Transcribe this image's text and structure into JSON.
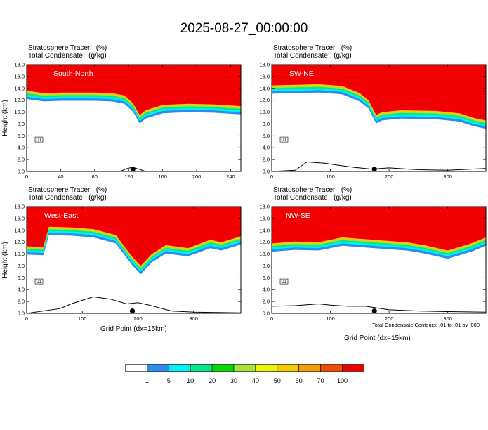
{
  "title": "2025-08-27_00:00:00",
  "panel_header": {
    "line1": "Stratosphere Tracer   (%)",
    "line2": "Total Condensate   (g/kg)"
  },
  "contour_note": "Total Condensate Contours: .01 to .01 by .000",
  "contour_label": "01",
  "colors": [
    "#ffffff",
    "#2c8cf0",
    "#00f2f2",
    "#00e88a",
    "#00dc00",
    "#a0e632",
    "#f0f000",
    "#f8c800",
    "#f89a00",
    "#f44a00",
    "#f00000"
  ],
  "colorbar": {
    "labels": [
      "1",
      "5",
      "10",
      "20",
      "30",
      "40",
      "50",
      "60",
      "70",
      "100"
    ]
  },
  "chart_data": [
    {
      "type": "heatmap",
      "name": "South-North",
      "ylabel": "Height (km)",
      "xlabel": "",
      "xlim": [
        0,
        252
      ],
      "ylim": [
        0,
        18
      ],
      "xticks": [
        "0",
        "40",
        "80",
        "120",
        "160",
        "200",
        "240"
      ],
      "xtick_values": [
        0,
        40,
        80,
        120,
        160,
        200,
        240
      ],
      "yticks": [
        "0.0",
        "2.0",
        "4.0",
        "6.0",
        "8.0",
        "10.0",
        "12.0",
        "14.0",
        "16.0",
        "18.0"
      ],
      "tropopause_km": [
        [
          0,
          13.6
        ],
        [
          20,
          13.2
        ],
        [
          40,
          13.3
        ],
        [
          60,
          13.3
        ],
        [
          80,
          13.3
        ],
        [
          100,
          13.2
        ],
        [
          115,
          12.8
        ],
        [
          125,
          11.5
        ],
        [
          133,
          9.5
        ],
        [
          140,
          10.3
        ],
        [
          160,
          11.2
        ],
        [
          190,
          11.4
        ],
        [
          220,
          11.3
        ],
        [
          252,
          11.0
        ]
      ],
      "terrain_km": [
        [
          0,
          0
        ],
        [
          110,
          0
        ],
        [
          118,
          0.5
        ],
        [
          124,
          0.7
        ],
        [
          132,
          0.4
        ],
        [
          140,
          0
        ],
        [
          252,
          0
        ]
      ],
      "marker_x": 125
    },
    {
      "type": "heatmap",
      "name": "SW-NE",
      "ylabel": "",
      "xlabel": "",
      "xlim": [
        0,
        365
      ],
      "ylim": [
        0,
        18
      ],
      "xticks": [
        "0",
        "100",
        "200",
        "300"
      ],
      "xtick_values": [
        0,
        100,
        200,
        300
      ],
      "yticks": [
        "0.0",
        "2.0",
        "4.0",
        "6.0",
        "8.0",
        "10.0",
        "12.0",
        "14.0",
        "16.0",
        "18.0"
      ],
      "tropopause_km": [
        [
          0,
          14.5
        ],
        [
          40,
          14.6
        ],
        [
          80,
          14.7
        ],
        [
          120,
          14.4
        ],
        [
          150,
          13.2
        ],
        [
          165,
          12.0
        ],
        [
          178,
          9.5
        ],
        [
          188,
          10.0
        ],
        [
          220,
          10.3
        ],
        [
          280,
          10.2
        ],
        [
          320,
          9.8
        ],
        [
          345,
          9.0
        ],
        [
          365,
          8.6
        ]
      ],
      "terrain_km": [
        [
          0,
          0
        ],
        [
          40,
          0.2
        ],
        [
          60,
          1.6
        ],
        [
          90,
          1.4
        ],
        [
          110,
          1.1
        ],
        [
          140,
          0.7
        ],
        [
          170,
          0.4
        ],
        [
          200,
          0.6
        ],
        [
          250,
          0.3
        ],
        [
          300,
          0.2
        ],
        [
          340,
          0.4
        ],
        [
          365,
          0.5
        ]
      ],
      "marker_x": 175
    },
    {
      "type": "heatmap",
      "name": "West-East",
      "ylabel": "Height (km)",
      "xlabel": "Grid Point (dx=15km)",
      "xlim": [
        0,
        385
      ],
      "ylim": [
        0,
        18
      ],
      "xticks": [
        "0",
        "100",
        "200",
        "300"
      ],
      "xtick_values": [
        0,
        100,
        200,
        300
      ],
      "yticks": [
        "0.0",
        "2.0",
        "4.0",
        "6.0",
        "8.0",
        "10.0",
        "12.0",
        "14.0",
        "16.0",
        "18.0"
      ],
      "tropopause_km": [
        [
          0,
          11.3
        ],
        [
          30,
          11.2
        ],
        [
          40,
          14.6
        ],
        [
          80,
          14.5
        ],
        [
          120,
          14.2
        ],
        [
          160,
          13.2
        ],
        [
          190,
          9.5
        ],
        [
          205,
          8.0
        ],
        [
          225,
          10.0
        ],
        [
          250,
          11.5
        ],
        [
          290,
          11.0
        ],
        [
          330,
          12.4
        ],
        [
          350,
          12.0
        ],
        [
          385,
          13.0
        ]
      ],
      "terrain_km": [
        [
          0,
          0
        ],
        [
          60,
          0.8
        ],
        [
          80,
          1.6
        ],
        [
          100,
          2.2
        ],
        [
          120,
          2.8
        ],
        [
          150,
          2.4
        ],
        [
          180,
          1.6
        ],
        [
          200,
          1.8
        ],
        [
          220,
          1.4
        ],
        [
          260,
          0.4
        ],
        [
          300,
          0.2
        ],
        [
          385,
          0.1
        ]
      ],
      "marker_x": 190
    },
    {
      "type": "heatmap",
      "name": "NW-SE",
      "ylabel": "",
      "xlabel": "Grid Point (dx=15km)",
      "xlim": [
        0,
        365
      ],
      "ylim": [
        0,
        18
      ],
      "xticks": [
        "0",
        "100",
        "200",
        "300"
      ],
      "xtick_values": [
        0,
        100,
        200,
        300
      ],
      "yticks": [
        "0.0",
        "2.0",
        "4.0",
        "6.0",
        "8.0",
        "10.0",
        "12.0",
        "14.0",
        "16.0",
        "18.0"
      ],
      "tropopause_km": [
        [
          0,
          11.8
        ],
        [
          40,
          12.1
        ],
        [
          80,
          12.0
        ],
        [
          120,
          12.8
        ],
        [
          160,
          12.5
        ],
        [
          200,
          12.2
        ],
        [
          230,
          12.0
        ],
        [
          260,
          11.5
        ],
        [
          300,
          10.6
        ],
        [
          340,
          11.8
        ],
        [
          365,
          12.8
        ]
      ],
      "terrain_km": [
        [
          0,
          1.2
        ],
        [
          40,
          1.3
        ],
        [
          80,
          1.6
        ],
        [
          100,
          1.4
        ],
        [
          130,
          1.2
        ],
        [
          160,
          1.2
        ],
        [
          200,
          0.6
        ],
        [
          250,
          0.4
        ],
        [
          300,
          0.3
        ],
        [
          365,
          0.2
        ]
      ],
      "marker_x": 175
    }
  ]
}
